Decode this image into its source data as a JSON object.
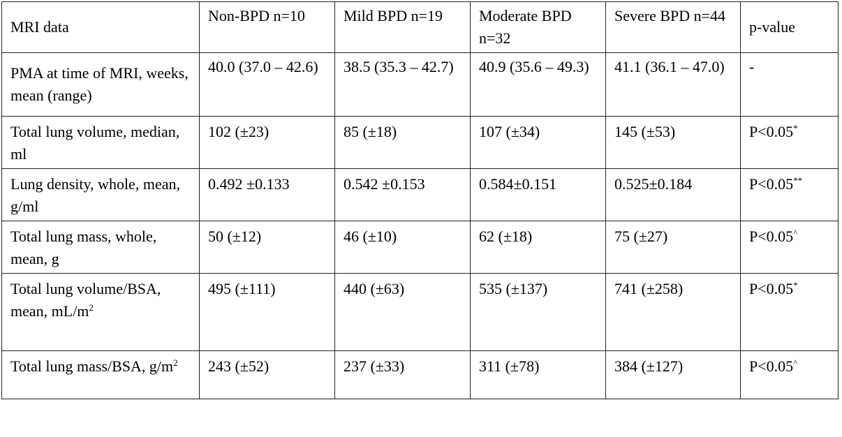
{
  "table": {
    "headers": [
      "MRI data",
      "Non-BPD n=10",
      "Mild BPD n=19",
      "Moderate BPD n=32",
      "Severe BPD n=44",
      "p-value"
    ],
    "rows": [
      {
        "label": "PMA at time of MRI, weeks, mean (range)",
        "cells": [
          "40.0 (37.0 – 42.6)",
          "38.5 (35.3 – 42.7)",
          "40.9 (35.6 – 49.3)",
          "41.1 (36.1 – 47.0)"
        ],
        "p": "-",
        "p_sup": ""
      },
      {
        "label": "Total lung volume, median, ml",
        "cells": [
          "102 (±23)",
          "85 (±18)",
          "107 (±34)",
          "145 (±53)"
        ],
        "p": "P<0.05",
        "p_sup": "*"
      },
      {
        "label": "Lung density, whole, mean, g/ml",
        "cells": [
          "0.492 ±0.133",
          "0.542 ±0.153",
          "0.584±0.151",
          "0.525±0.184"
        ],
        "p": "P<0.05",
        "p_sup": "**"
      },
      {
        "label": "Total lung mass, whole, mean, g",
        "cells": [
          "50 (±12)",
          "46 (±10)",
          "62 (±18)",
          "75 (±27)"
        ],
        "p": "P<0.05",
        "p_sup": "^"
      },
      {
        "label": "Total lung volume/BSA, mean, mL/m",
        "label_sup": "2",
        "cells": [
          "495 (±111)",
          "440 (±63)",
          "535 (±137)",
          "741 (±258)"
        ],
        "p": "P<0.05",
        "p_sup": "*"
      },
      {
        "label": "Total lung mass/BSA, g/m",
        "label_sup": "2",
        "cells": [
          "243 (±52)",
          "237 (±33)",
          "311 (±78)",
          "384 (±127)"
        ],
        "p": "P<0.05",
        "p_sup": "^"
      }
    ]
  }
}
